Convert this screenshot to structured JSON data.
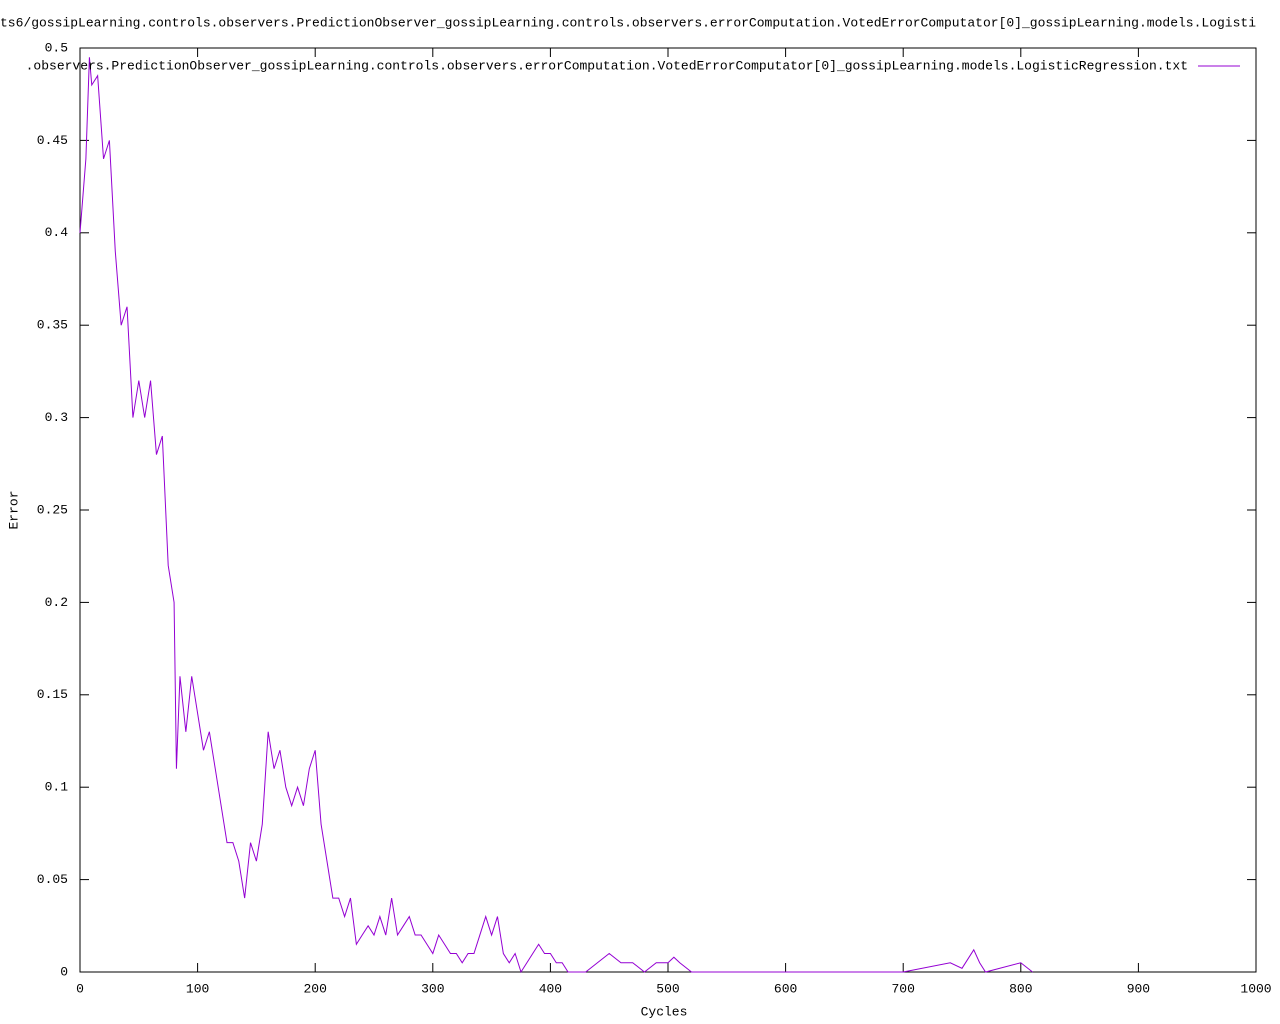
{
  "chart_data": {
    "type": "line",
    "title": "ts6/gossipLearning.controls.observers.PredictionObserver_gossipLearning.controls.observers.errorComputation.VotedErrorComputator[0]_gossipLearning.models.Logisti",
    "x_label": "Cycles",
    "y_label": "Error",
    "legend": "top-right",
    "xlim": [
      0,
      1000
    ],
    "ylim": [
      0,
      0.5
    ],
    "xticks": [
      0,
      100,
      200,
      300,
      400,
      500,
      600,
      700,
      800,
      900,
      1000
    ],
    "yticks": [
      0,
      0.05,
      0.1,
      0.15,
      0.2,
      0.25,
      0.3,
      0.35,
      0.4,
      0.45,
      0.5
    ],
    "x": [
      0,
      5,
      8,
      10,
      15,
      20,
      25,
      30,
      35,
      40,
      45,
      50,
      55,
      60,
      65,
      70,
      75,
      80,
      82,
      85,
      90,
      95,
      100,
      105,
      110,
      115,
      120,
      125,
      130,
      135,
      140,
      145,
      150,
      155,
      160,
      165,
      170,
      175,
      180,
      185,
      190,
      195,
      200,
      205,
      210,
      215,
      220,
      225,
      230,
      235,
      240,
      245,
      250,
      255,
      260,
      265,
      270,
      275,
      280,
      285,
      290,
      295,
      300,
      305,
      310,
      315,
      320,
      325,
      330,
      335,
      340,
      345,
      350,
      355,
      360,
      365,
      370,
      375,
      380,
      385,
      390,
      395,
      400,
      405,
      410,
      415,
      420,
      430,
      440,
      450,
      460,
      470,
      480,
      490,
      500,
      505,
      510,
      520,
      540,
      560,
      600,
      660,
      700,
      740,
      750,
      760,
      765,
      770,
      800,
      810
    ],
    "series": [
      {
        "name": ".observers.PredictionObserver_gossipLearning.controls.observers.errorComputation.VotedErrorComputator[0]_gossipLearning.models.LogisticRegression.txt",
        "color": "#9400d3",
        "values": [
          0.4,
          0.44,
          0.495,
          0.48,
          0.485,
          0.44,
          0.45,
          0.39,
          0.35,
          0.36,
          0.3,
          0.32,
          0.3,
          0.32,
          0.28,
          0.29,
          0.22,
          0.2,
          0.11,
          0.16,
          0.13,
          0.16,
          0.14,
          0.12,
          0.13,
          0.11,
          0.09,
          0.07,
          0.07,
          0.06,
          0.04,
          0.07,
          0.06,
          0.08,
          0.13,
          0.11,
          0.12,
          0.1,
          0.09,
          0.1,
          0.09,
          0.11,
          0.12,
          0.08,
          0.06,
          0.04,
          0.04,
          0.03,
          0.04,
          0.015,
          0.02,
          0.025,
          0.02,
          0.03,
          0.02,
          0.04,
          0.02,
          0.025,
          0.03,
          0.02,
          0.02,
          0.015,
          0.01,
          0.02,
          0.015,
          0.01,
          0.01,
          0.005,
          0.01,
          0.01,
          0.02,
          0.03,
          0.02,
          0.03,
          0.01,
          0.005,
          0.01,
          0,
          0.005,
          0.01,
          0.015,
          0.01,
          0.01,
          0.005,
          0.005,
          0,
          0,
          0,
          0.005,
          0.01,
          0.005,
          0.005,
          0,
          0.005,
          0.005,
          0.008,
          0.005,
          0,
          0,
          0,
          0,
          0,
          0,
          0.005,
          0.002,
          0.012,
          0.005,
          0,
          0.005,
          0
        ]
      }
    ]
  }
}
